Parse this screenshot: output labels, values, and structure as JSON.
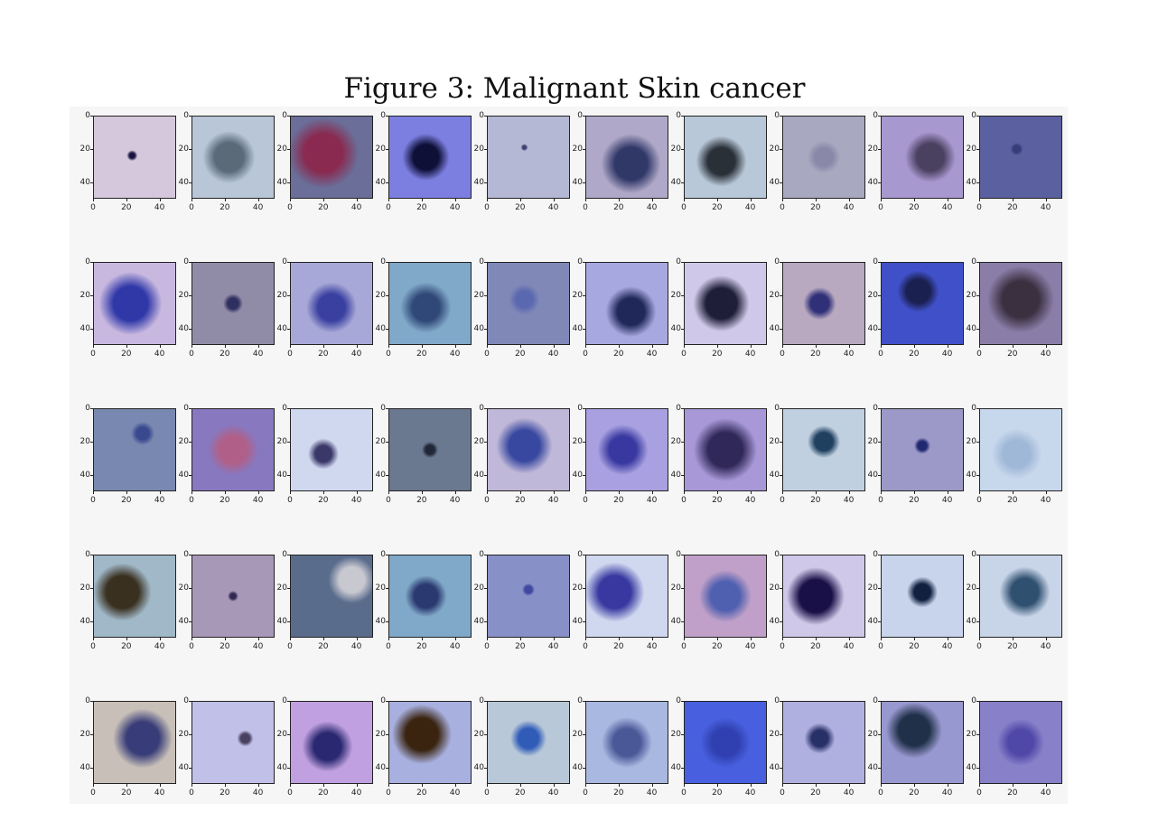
{
  "caption": "Figure 3: Malignant Skin cancer",
  "axes": {
    "x_ticks": [
      "0",
      "20",
      "40"
    ],
    "y_ticks": [
      "0",
      "20",
      "40"
    ],
    "x_tick_values": [
      0,
      20,
      40
    ],
    "y_tick_values": [
      0,
      20,
      40
    ],
    "image_size": 50
  },
  "grid": {
    "rows": 5,
    "cols": 10
  },
  "images": [
    {
      "name": "lesion-r1c1",
      "bg": "#d6c8dc",
      "spot": "#1a1440",
      "spot_x": 0.47,
      "spot_y": 0.48,
      "spot_r": 0.07
    },
    {
      "name": "lesion-r1c2",
      "bg": "#b8c6d8",
      "spot": "#5a6a78",
      "spot_x": 0.45,
      "spot_y": 0.5,
      "spot_r": 0.32
    },
    {
      "name": "lesion-r1c3",
      "bg": "#6a6e98",
      "spot": "#8a2a50",
      "spot_x": 0.4,
      "spot_y": 0.45,
      "spot_r": 0.42
    },
    {
      "name": "lesion-r1c4",
      "bg": "#7c7ee0",
      "spot": "#0e1038",
      "spot_x": 0.45,
      "spot_y": 0.5,
      "spot_r": 0.28
    },
    {
      "name": "lesion-r1c5",
      "bg": "#b4b8d4",
      "spot": "#404070",
      "spot_x": 0.45,
      "spot_y": 0.38,
      "spot_r": 0.04
    },
    {
      "name": "lesion-r1c6",
      "bg": "#b0a8c8",
      "spot": "#303868",
      "spot_x": 0.55,
      "spot_y": 0.58,
      "spot_r": 0.36
    },
    {
      "name": "lesion-r1c7",
      "bg": "#b8c8d8",
      "spot": "#2a3038",
      "spot_x": 0.45,
      "spot_y": 0.55,
      "spot_r": 0.3
    },
    {
      "name": "lesion-r1c8",
      "bg": "#a8a8c0",
      "spot": "#8a88a8",
      "spot_x": 0.5,
      "spot_y": 0.5,
      "spot_r": 0.2
    },
    {
      "name": "lesion-r1c9",
      "bg": "#a898d0",
      "spot": "#4a4060",
      "spot_x": 0.6,
      "spot_y": 0.5,
      "spot_r": 0.3
    },
    {
      "name": "lesion-r1c10",
      "bg": "#5a60a0",
      "spot": "#383c78",
      "spot_x": 0.45,
      "spot_y": 0.4,
      "spot_r": 0.08
    },
    {
      "name": "lesion-r2c1",
      "bg": "#c8b8e0",
      "spot": "#3038a8",
      "spot_x": 0.45,
      "spot_y": 0.5,
      "spot_r": 0.38
    },
    {
      "name": "lesion-r2c2",
      "bg": "#908ca8",
      "spot": "#303060",
      "spot_x": 0.5,
      "spot_y": 0.5,
      "spot_r": 0.12
    },
    {
      "name": "lesion-r2c3",
      "bg": "#a8a8d8",
      "spot": "#3a40a0",
      "spot_x": 0.5,
      "spot_y": 0.55,
      "spot_r": 0.3
    },
    {
      "name": "lesion-r2c4",
      "bg": "#80a8c8",
      "spot": "#304878",
      "spot_x": 0.45,
      "spot_y": 0.55,
      "spot_r": 0.3
    },
    {
      "name": "lesion-r2c5",
      "bg": "#8088b8",
      "spot": "#5a68b0",
      "spot_x": 0.45,
      "spot_y": 0.45,
      "spot_r": 0.18
    },
    {
      "name": "lesion-r2c6",
      "bg": "#a8a8e0",
      "spot": "#20285a",
      "spot_x": 0.55,
      "spot_y": 0.6,
      "spot_r": 0.3
    },
    {
      "name": "lesion-r2c7",
      "bg": "#d0c8e8",
      "spot": "#1e1e38",
      "spot_x": 0.45,
      "spot_y": 0.5,
      "spot_r": 0.34
    },
    {
      "name": "lesion-r2c8",
      "bg": "#b8a8c0",
      "spot": "#303078",
      "spot_x": 0.45,
      "spot_y": 0.5,
      "spot_r": 0.2
    },
    {
      "name": "lesion-r2c9",
      "bg": "#4050c8",
      "spot": "#1a2050",
      "spot_x": 0.45,
      "spot_y": 0.35,
      "spot_r": 0.25
    },
    {
      "name": "lesion-r2c10",
      "bg": "#8a7ea8",
      "spot": "#3a3040",
      "spot_x": 0.5,
      "spot_y": 0.45,
      "spot_r": 0.4
    },
    {
      "name": "lesion-r3c1",
      "bg": "#7888b0",
      "spot": "#3a4890",
      "spot_x": 0.6,
      "spot_y": 0.3,
      "spot_r": 0.14
    },
    {
      "name": "lesion-r3c2",
      "bg": "#8878c0",
      "spot": "#b06088",
      "spot_x": 0.5,
      "spot_y": 0.5,
      "spot_r": 0.3
    },
    {
      "name": "lesion-r3c3",
      "bg": "#d0d8f0",
      "spot": "#3a3868",
      "spot_x": 0.4,
      "spot_y": 0.55,
      "spot_r": 0.18
    },
    {
      "name": "lesion-r3c4",
      "bg": "#6a7890",
      "spot": "#202838",
      "spot_x": 0.5,
      "spot_y": 0.5,
      "spot_r": 0.1
    },
    {
      "name": "lesion-r3c5",
      "bg": "#c0b8d8",
      "spot": "#3848a0",
      "spot_x": 0.45,
      "spot_y": 0.45,
      "spot_r": 0.34
    },
    {
      "name": "lesion-r3c6",
      "bg": "#a8a0e0",
      "spot": "#3838a0",
      "spot_x": 0.45,
      "spot_y": 0.5,
      "spot_r": 0.3
    },
    {
      "name": "lesion-r3c7",
      "bg": "#a898d8",
      "spot": "#302858",
      "spot_x": 0.5,
      "spot_y": 0.5,
      "spot_r": 0.38
    },
    {
      "name": "lesion-r3c8",
      "bg": "#c0d0e0",
      "spot": "#204060",
      "spot_x": 0.5,
      "spot_y": 0.4,
      "spot_r": 0.2
    },
    {
      "name": "lesion-r3c9",
      "bg": "#9c98c8",
      "spot": "#202870",
      "spot_x": 0.5,
      "spot_y": 0.45,
      "spot_r": 0.1
    },
    {
      "name": "lesion-r3c10",
      "bg": "#c8d8ec",
      "spot": "#a0b8d8",
      "spot_x": 0.45,
      "spot_y": 0.55,
      "spot_r": 0.3
    },
    {
      "name": "lesion-r4c1",
      "bg": "#a0b8c8",
      "spot": "#3a3020",
      "spot_x": 0.35,
      "spot_y": 0.45,
      "spot_r": 0.35
    },
    {
      "name": "lesion-r4c2",
      "bg": "#a898b8",
      "spot": "#302850",
      "spot_x": 0.5,
      "spot_y": 0.5,
      "spot_r": 0.06
    },
    {
      "name": "lesion-r4c3",
      "bg": "#5a6c8c",
      "spot": "#c8c8d0",
      "spot_x": 0.75,
      "spot_y": 0.3,
      "spot_r": 0.28
    },
    {
      "name": "lesion-r4c4",
      "bg": "#80a8c8",
      "spot": "#2a3a70",
      "spot_x": 0.45,
      "spot_y": 0.5,
      "spot_r": 0.25
    },
    {
      "name": "lesion-r4c5",
      "bg": "#8890c8",
      "spot": "#4048a0",
      "spot_x": 0.5,
      "spot_y": 0.42,
      "spot_r": 0.08
    },
    {
      "name": "lesion-r4c6",
      "bg": "#d0d8f0",
      "spot": "#3838a0",
      "spot_x": 0.35,
      "spot_y": 0.45,
      "spot_r": 0.36
    },
    {
      "name": "lesion-r4c7",
      "bg": "#c0a0c8",
      "spot": "#5060b0",
      "spot_x": 0.5,
      "spot_y": 0.5,
      "spot_r": 0.32
    },
    {
      "name": "lesion-r4c8",
      "bg": "#d0c8e8",
      "spot": "#1a1048",
      "spot_x": 0.4,
      "spot_y": 0.5,
      "spot_r": 0.35
    },
    {
      "name": "lesion-r4c9",
      "bg": "#c8d4ec",
      "spot": "#102040",
      "spot_x": 0.5,
      "spot_y": 0.45,
      "spot_r": 0.18
    },
    {
      "name": "lesion-r4c10",
      "bg": "#c8d4e8",
      "spot": "#305070",
      "spot_x": 0.55,
      "spot_y": 0.45,
      "spot_r": 0.3
    },
    {
      "name": "lesion-r5c1",
      "bg": "#c8c0b8",
      "spot": "#383c78",
      "spot_x": 0.6,
      "spot_y": 0.45,
      "spot_r": 0.36
    },
    {
      "name": "lesion-r5c2",
      "bg": "#c0c0e8",
      "spot": "#4a4060",
      "spot_x": 0.65,
      "spot_y": 0.45,
      "spot_r": 0.1
    },
    {
      "name": "lesion-r5c3",
      "bg": "#c0a0e0",
      "spot": "#2a2870",
      "spot_x": 0.45,
      "spot_y": 0.55,
      "spot_r": 0.3
    },
    {
      "name": "lesion-r5c4",
      "bg": "#a8b0e0",
      "spot": "#3a2410",
      "spot_x": 0.4,
      "spot_y": 0.4,
      "spot_r": 0.36
    },
    {
      "name": "lesion-r5c5",
      "bg": "#b8c8d8",
      "spot": "#305cb8",
      "spot_x": 0.5,
      "spot_y": 0.45,
      "spot_r": 0.22
    },
    {
      "name": "lesion-r5c6",
      "bg": "#a8b8e0",
      "spot": "#4a5898",
      "spot_x": 0.5,
      "spot_y": 0.5,
      "spot_r": 0.3
    },
    {
      "name": "lesion-r5c7",
      "bg": "#4860e0",
      "spot": "#3040b0",
      "spot_x": 0.5,
      "spot_y": 0.5,
      "spot_r": 0.3
    },
    {
      "name": "lesion-r5c8",
      "bg": "#b0b0e0",
      "spot": "#283068",
      "spot_x": 0.45,
      "spot_y": 0.45,
      "spot_r": 0.18
    },
    {
      "name": "lesion-r5c9",
      "bg": "#9898d0",
      "spot": "#203048",
      "spot_x": 0.4,
      "spot_y": 0.35,
      "spot_r": 0.34
    },
    {
      "name": "lesion-r5c10",
      "bg": "#8880c8",
      "spot": "#5048a8",
      "spot_x": 0.5,
      "spot_y": 0.5,
      "spot_r": 0.28
    }
  ]
}
